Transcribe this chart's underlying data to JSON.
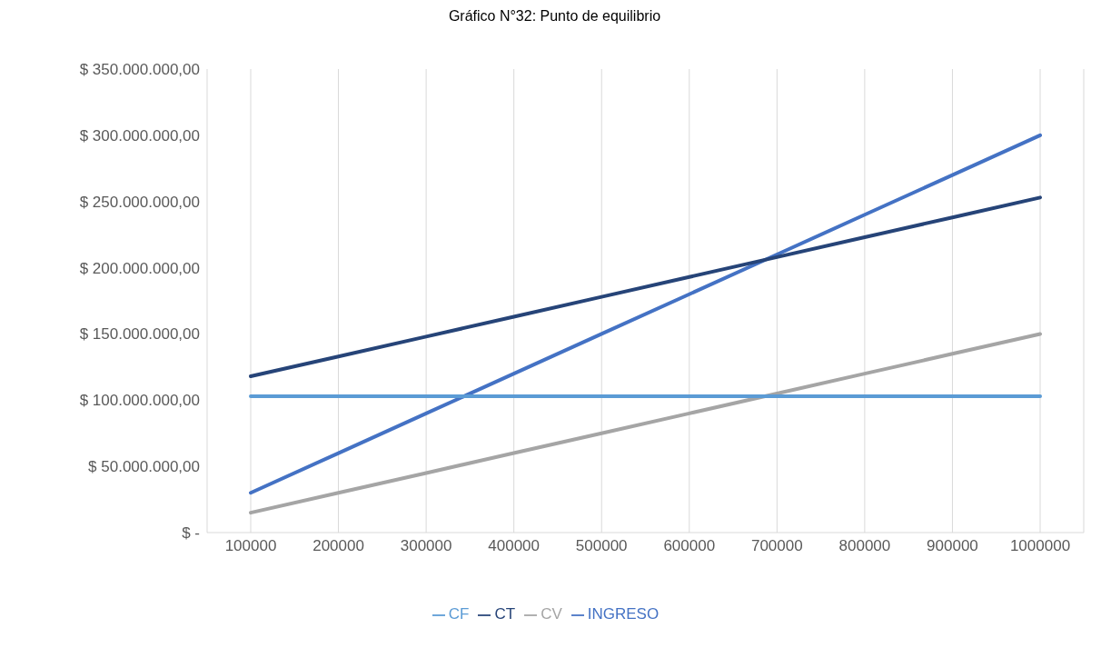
{
  "chart_data": {
    "type": "line",
    "title": "Gráfico N°32: Punto de equilibrio",
    "categories": [
      "100000",
      "200000",
      "300000",
      "400000",
      "500000",
      "600000",
      "700000",
      "800000",
      "900000",
      "1000000"
    ],
    "series": [
      {
        "name": "INGRESO",
        "color": "#4472c4",
        "values": [
          30000000,
          60000000,
          90000000,
          120000000,
          150000000,
          180000000,
          210000000,
          240000000,
          270000000,
          300000000
        ]
      },
      {
        "name": "CV",
        "color": "#a5a5a5",
        "values": [
          15000000,
          30000000,
          45000000,
          60000000,
          75000000,
          90000000,
          105000000,
          120000000,
          135000000,
          150000000
        ]
      },
      {
        "name": "CF",
        "color": "#5b9bd5",
        "values": [
          103000000,
          103000000,
          103000000,
          103000000,
          103000000,
          103000000,
          103000000,
          103000000,
          103000000,
          103000000
        ]
      },
      {
        "name": "CT",
        "color": "#264478",
        "values": [
          118000000,
          133000000,
          148000000,
          163000000,
          178000000,
          193000000,
          208000000,
          223000000,
          238000000,
          253000000
        ]
      }
    ],
    "ylim": [
      0,
      350000000
    ],
    "yticks": [
      {
        "value": 0,
        "label": "$ -"
      },
      {
        "value": 50000000,
        "label": "$ 50.000.000,00"
      },
      {
        "value": 100000000,
        "label": "$ 100.000.000,00"
      },
      {
        "value": 150000000,
        "label": "$ 150.000.000,00"
      },
      {
        "value": 200000000,
        "label": "$ 200.000.000,00"
      },
      {
        "value": 250000000,
        "label": "$ 250.000.000,00"
      },
      {
        "value": 300000000,
        "label": "$ 300.000.000,00"
      },
      {
        "value": 350000000,
        "label": "$ 350.000.000,00"
      }
    ],
    "grid": "x",
    "legend": "bottom",
    "marker": "none",
    "line_style": "solid"
  }
}
